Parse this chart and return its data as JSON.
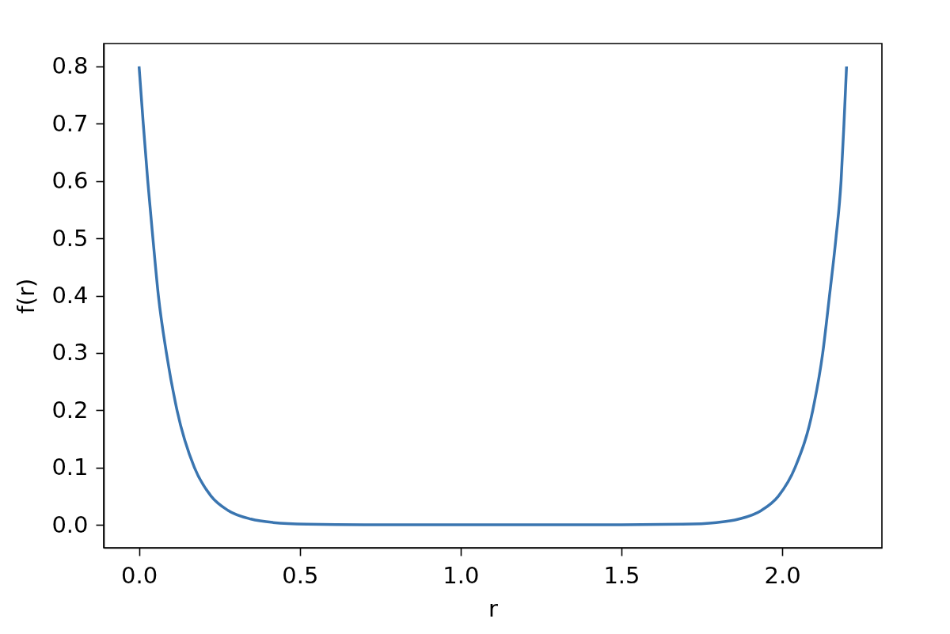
{
  "chart_data": {
    "type": "line",
    "xlabel": "r",
    "ylabel": "f(r)",
    "x": [
      0,
      0.013,
      0.027,
      0.043,
      0.06,
      0.085,
      0.118,
      0.172,
      0.224,
      0.277,
      0.348,
      0.417,
      0.522,
      0.7,
      1.0,
      1.3,
      1.5,
      1.69,
      1.795,
      1.865,
      1.935,
      1.988,
      2.04,
      2.095,
      2.126,
      2.147,
      2.167,
      2.183,
      2.192,
      2.2
    ],
    "series": [
      {
        "color": "#3a75b0",
        "values": [
          0.8,
          0.7,
          0.6,
          0.5,
          0.4,
          0.3,
          0.2,
          0.1,
          0.05,
          0.025,
          0.01,
          0.004,
          0.001,
          0.0,
          0.0,
          0.0,
          0.0,
          0.001,
          0.004,
          0.01,
          0.025,
          0.05,
          0.1,
          0.2,
          0.3,
          0.4,
          0.5,
          0.6,
          0.7,
          0.8
        ]
      }
    ],
    "line_style": "solid",
    "xlim": [
      -0.11,
      2.31
    ],
    "ylim": [
      -0.04,
      0.84
    ],
    "xticks": [
      {
        "value": 0,
        "label": "0.0"
      },
      0.5,
      {
        "value": 1,
        "label": "1.0"
      },
      1.5,
      {
        "value": 2,
        "label": "2.0"
      }
    ],
    "yticks": [
      {
        "value": 0,
        "label": "0.0"
      },
      0.1,
      0.2,
      0.3,
      0.4,
      0.5,
      0.6,
      0.7,
      0.8
    ]
  }
}
